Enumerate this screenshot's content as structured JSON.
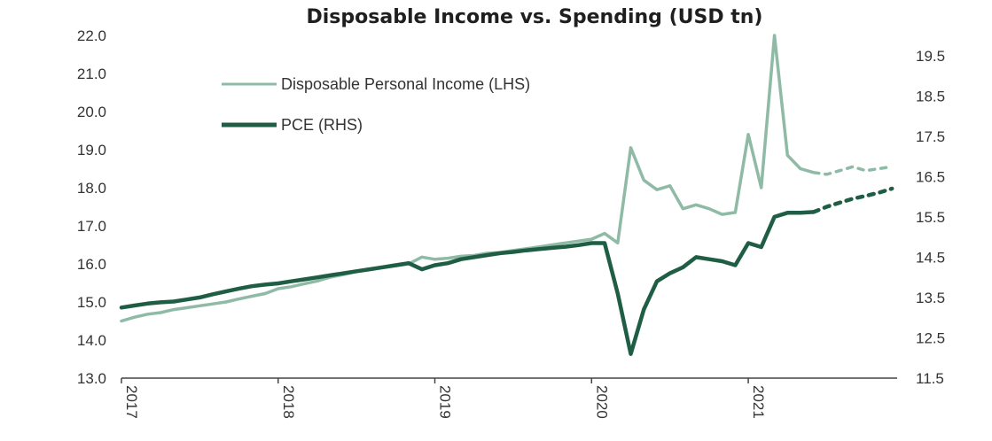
{
  "chart_data": {
    "type": "line",
    "title": "Disposable Income vs. Spending (USD tn)",
    "left_axis": {
      "ylim": [
        13.0,
        22.0
      ],
      "ticks": [
        "22.0",
        "21.0",
        "20.0",
        "19.0",
        "18.0",
        "17.0",
        "16.0",
        "15.0",
        "14.0",
        "13.0"
      ]
    },
    "right_axis": {
      "ylim": [
        11.5,
        20.0
      ],
      "ticks": [
        "19.5",
        "18.5",
        "17.5",
        "16.5",
        "15.5",
        "14.5",
        "13.5",
        "12.5",
        "11.5"
      ]
    },
    "x_axis": {
      "xlim": [
        2017.0,
        2021.95
      ],
      "ticks": [
        "2017",
        "2018",
        "2019",
        "2020",
        "2021"
      ]
    },
    "legend": {
      "position": "top-left",
      "entries": [
        "Disposable Personal Income (LHS)",
        "PCE (RHS)"
      ]
    },
    "colors": {
      "income": "#8fbaa5",
      "pce": "#1f5e45"
    },
    "series": [
      {
        "name": "Disposable Personal Income (LHS)",
        "axis": "left",
        "x": [
          2017.0,
          2017.083,
          2017.167,
          2017.25,
          2017.333,
          2017.417,
          2017.5,
          2017.583,
          2017.667,
          2017.75,
          2017.833,
          2017.917,
          2018.0,
          2018.083,
          2018.167,
          2018.25,
          2018.333,
          2018.417,
          2018.5,
          2018.583,
          2018.667,
          2018.75,
          2018.833,
          2018.917,
          2019.0,
          2019.083,
          2019.167,
          2019.25,
          2019.333,
          2019.417,
          2019.5,
          2019.583,
          2019.667,
          2019.75,
          2019.833,
          2019.917,
          2020.0,
          2020.083,
          2020.167,
          2020.25,
          2020.333,
          2020.417,
          2020.5,
          2020.583,
          2020.667,
          2020.75,
          2020.833,
          2020.917,
          2021.0,
          2021.083,
          2021.167,
          2021.25,
          2021.333,
          2021.417
        ],
        "values": [
          14.5,
          14.6,
          14.68,
          14.72,
          14.8,
          14.85,
          14.9,
          14.95,
          15.0,
          15.08,
          15.15,
          15.22,
          15.35,
          15.4,
          15.48,
          15.55,
          15.65,
          15.72,
          15.8,
          15.85,
          15.9,
          15.95,
          16.0,
          16.18,
          16.12,
          16.15,
          16.2,
          16.22,
          16.28,
          16.3,
          16.35,
          16.4,
          16.45,
          16.5,
          16.55,
          16.6,
          16.65,
          16.8,
          16.55,
          19.05,
          18.2,
          17.95,
          18.05,
          17.45,
          17.55,
          17.45,
          17.3,
          17.35,
          19.4,
          18.0,
          22.0,
          18.85,
          18.5,
          18.4
        ],
        "forecast": {
          "x": [
            2021.417,
            2021.5,
            2021.583,
            2021.667,
            2021.75,
            2021.833,
            2021.917
          ],
          "values": [
            18.4,
            18.35,
            18.45,
            18.55,
            18.45,
            18.5,
            18.55
          ]
        }
      },
      {
        "name": "PCE (RHS)",
        "axis": "right",
        "x": [
          2017.0,
          2017.083,
          2017.167,
          2017.25,
          2017.333,
          2017.417,
          2017.5,
          2017.583,
          2017.667,
          2017.75,
          2017.833,
          2017.917,
          2018.0,
          2018.083,
          2018.167,
          2018.25,
          2018.333,
          2018.417,
          2018.5,
          2018.583,
          2018.667,
          2018.75,
          2018.833,
          2018.917,
          2019.0,
          2019.083,
          2019.167,
          2019.25,
          2019.333,
          2019.417,
          2019.5,
          2019.583,
          2019.667,
          2019.75,
          2019.833,
          2019.917,
          2020.0,
          2020.083,
          2020.167,
          2020.25,
          2020.333,
          2020.417,
          2020.5,
          2020.583,
          2020.667,
          2020.75,
          2020.833,
          2020.917,
          2021.0,
          2021.083,
          2021.167,
          2021.25,
          2021.333,
          2021.417
        ],
        "values": [
          13.25,
          13.3,
          13.35,
          13.38,
          13.4,
          13.45,
          13.5,
          13.58,
          13.65,
          13.72,
          13.78,
          13.82,
          13.85,
          13.9,
          13.95,
          14.0,
          14.05,
          14.1,
          14.15,
          14.2,
          14.25,
          14.3,
          14.35,
          14.2,
          14.3,
          14.35,
          14.45,
          14.5,
          14.55,
          14.6,
          14.63,
          14.67,
          14.7,
          14.73,
          14.76,
          14.8,
          14.85,
          14.85,
          13.6,
          12.1,
          13.2,
          13.9,
          14.1,
          14.25,
          14.5,
          14.45,
          14.4,
          14.3,
          14.85,
          14.75,
          15.5,
          15.6,
          15.6,
          15.62
        ],
        "forecast": {
          "x": [
            2021.417,
            2021.5,
            2021.583,
            2021.667,
            2021.75,
            2021.833,
            2021.917
          ],
          "values": [
            15.62,
            15.75,
            15.85,
            15.95,
            16.02,
            16.1,
            16.2
          ]
        }
      }
    ]
  }
}
